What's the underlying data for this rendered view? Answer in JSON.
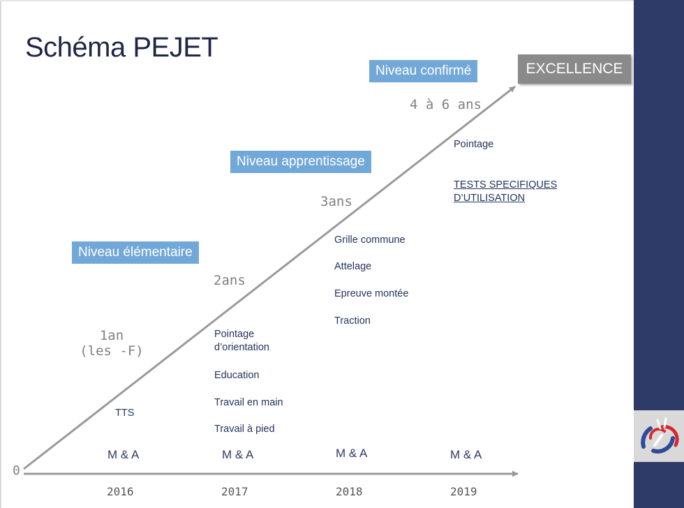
{
  "title": "Schéma PEJET",
  "levels": {
    "elementaire": "Niveau élémentaire",
    "apprentissage": "Niveau apprentissage",
    "confirme": "Niveau confirmé",
    "excellence": "EXCELLENCE"
  },
  "durations": {
    "d1_line1": "1an",
    "d1_line2": "(les -F)",
    "d2": "2ans",
    "d3": "3ans",
    "d4": "4 à 6 ans"
  },
  "origin_label": "0",
  "years": [
    "2016",
    "2017",
    "2018",
    "2019"
  ],
  "ma_label": "M & A",
  "items": {
    "y2016": [
      "TTS"
    ],
    "y2017": [
      "Pointage\nd’orientation",
      "Education",
      "Travail en main",
      "Travail à pied"
    ],
    "y2018": [
      "Grille commune",
      "Attelage",
      "Epreuve montée",
      "Traction"
    ],
    "y2019": [
      "Pointage",
      "TESTS SPECIFIQUES\nD’UTILISATION"
    ]
  },
  "colors": {
    "level_box": "#72a8d8",
    "excellence_box": "#8a8a8a",
    "sidebar": "#2e3a67",
    "axis": "#999999",
    "text_dark": "#25335f"
  },
  "icons": [
    "logo-icon"
  ]
}
